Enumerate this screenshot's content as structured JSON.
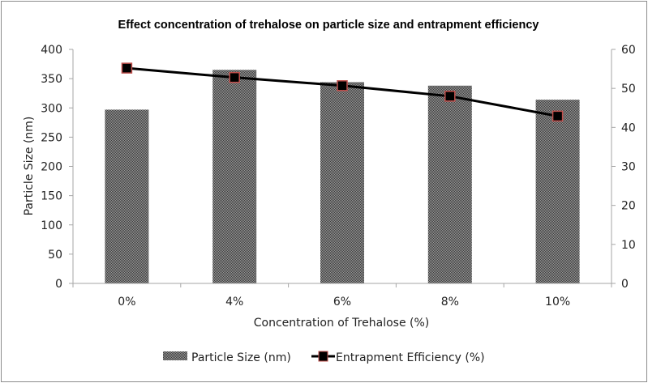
{
  "chart_data": {
    "type": "bar+line",
    "title": "Effect concentration  of trehalose  on particle size and entrapment  efficiency",
    "xlabel": "Concentration of Trehalose (%)",
    "ylabel": "Particle Size (nm)",
    "y2label": "",
    "categories": [
      "0%",
      "4%",
      "6%",
      "8%",
      "10%"
    ],
    "ylim": [
      0,
      400
    ],
    "yticks": [
      0,
      50,
      100,
      150,
      200,
      250,
      300,
      350,
      400
    ],
    "y2lim": [
      0,
      60
    ],
    "y2ticks": [
      0,
      10,
      20,
      30,
      40,
      50,
      60
    ],
    "grid": false,
    "legend_position": "bottom",
    "series": [
      {
        "name": "Particle Size (nm)",
        "type": "bar",
        "axis": "left",
        "values": [
          297,
          365,
          344,
          338,
          314
        ],
        "color": "#555555"
      },
      {
        "name": "Entrapment Efficiency (%)",
        "type": "line",
        "axis": "right",
        "values": [
          55.2,
          52.8,
          50.7,
          48.0,
          42.9
        ],
        "color": "#000000",
        "marker_edge": "#c0504d"
      }
    ]
  }
}
